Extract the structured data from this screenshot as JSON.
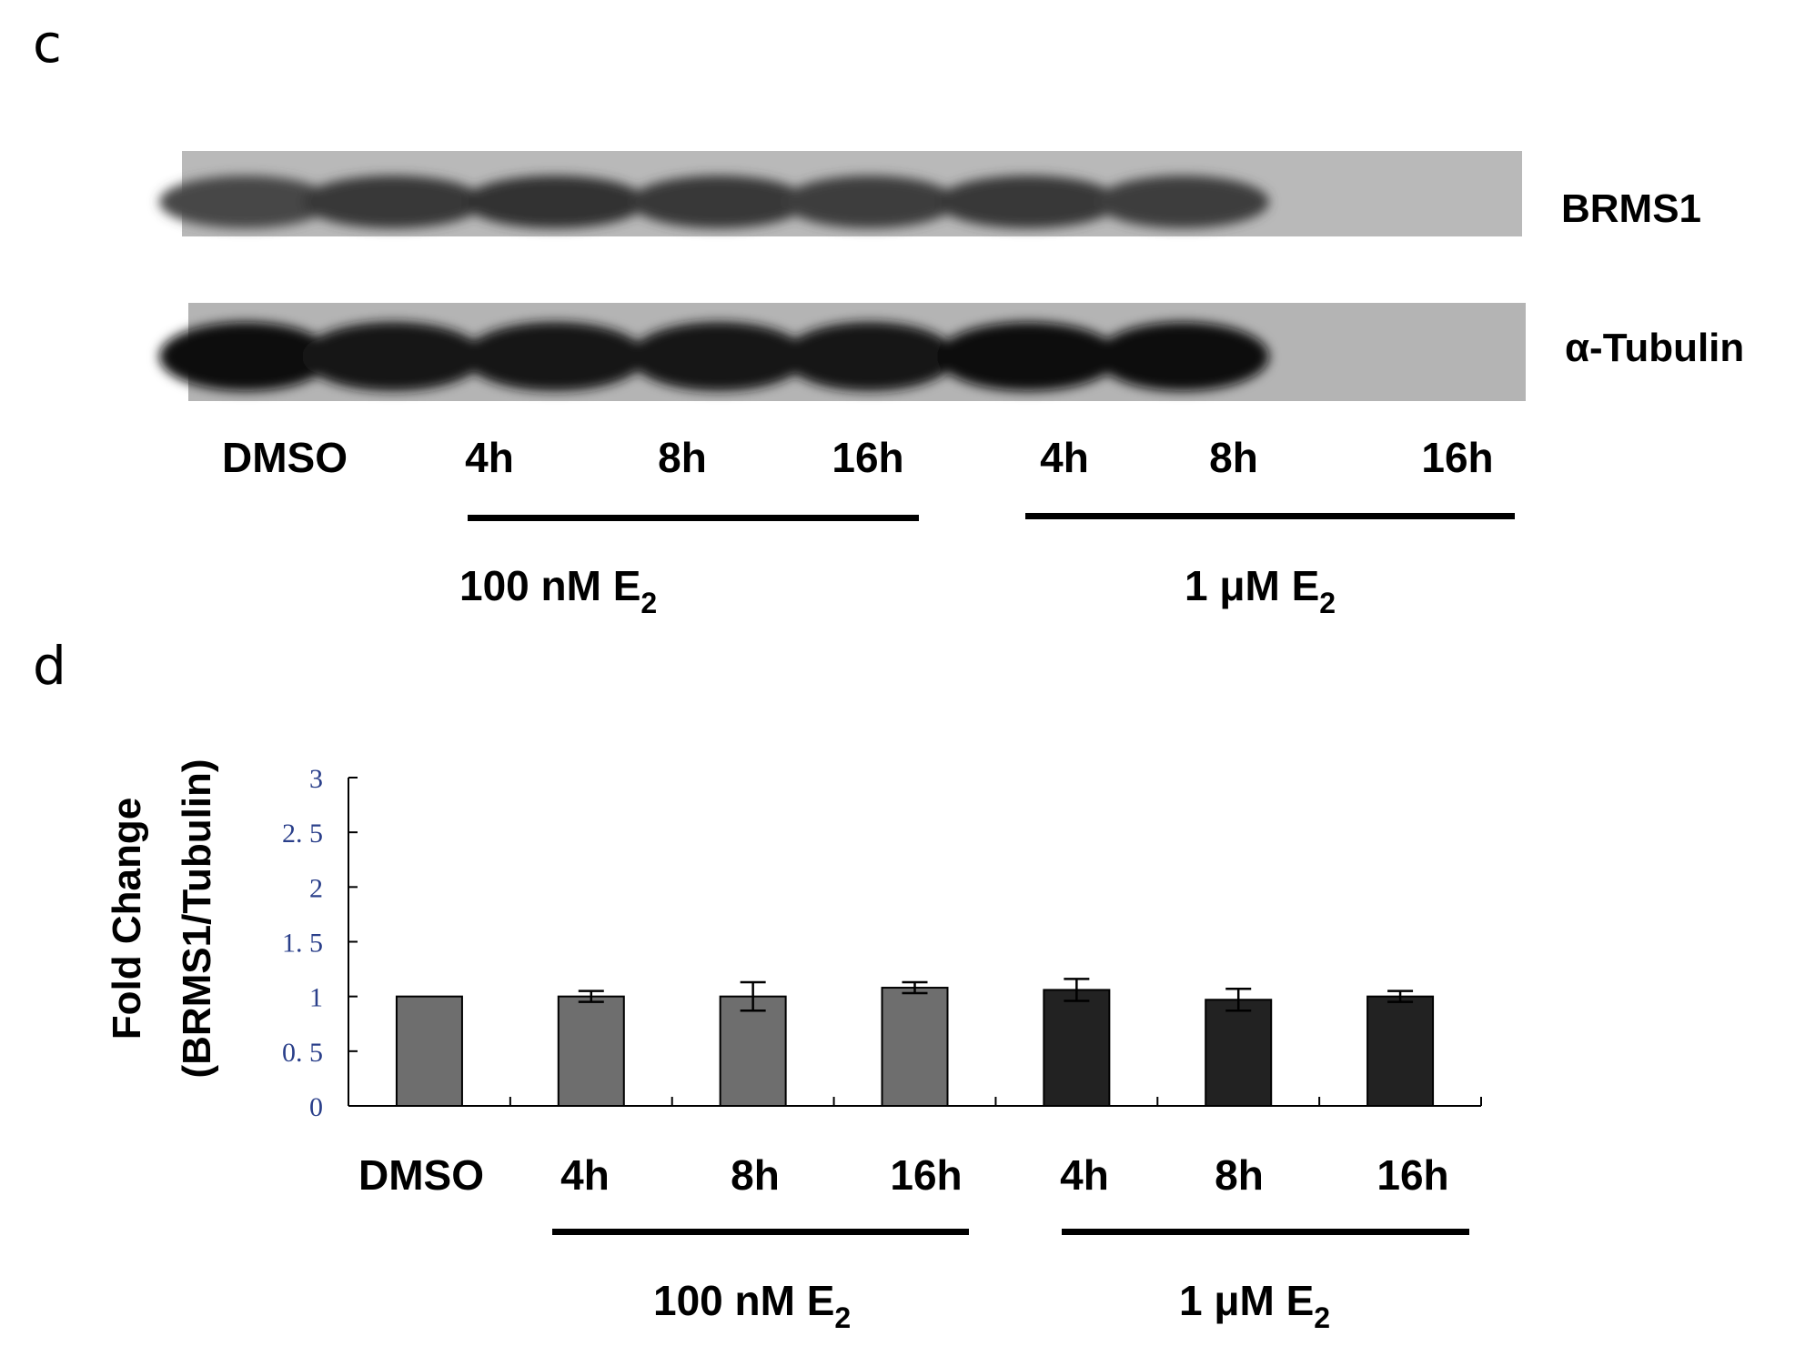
{
  "panels": {
    "c": "c",
    "d": "d"
  },
  "blot": {
    "bands": [
      {
        "name": "BRMS1",
        "intensity": [
          0.72,
          0.78,
          0.8,
          0.78,
          0.76,
          0.78,
          0.76
        ]
      },
      {
        "name": "α-Tubulin",
        "intensity": [
          0.95,
          0.92,
          0.92,
          0.9,
          0.93,
          0.96,
          0.95
        ]
      }
    ],
    "lanes": [
      "DMSO",
      "4h",
      "8h",
      "16h",
      "4h",
      "8h",
      "16h"
    ],
    "groups": [
      {
        "label_main": "100 nM E",
        "label_sub": "2"
      },
      {
        "label_main": "1 μM E",
        "label_sub": "2"
      }
    ]
  },
  "chart_data": {
    "type": "bar",
    "categories": [
      "DMSO",
      "4h",
      "8h",
      "16h",
      "4h",
      "8h",
      "16h"
    ],
    "values": [
      1.0,
      1.0,
      1.0,
      1.08,
      1.06,
      0.97,
      1.0
    ],
    "errors": [
      0,
      0.05,
      0.13,
      0.05,
      0.1,
      0.1,
      0.05
    ],
    "bar_colors": [
      "#6e6e6e",
      "#6e6e6e",
      "#6e6e6e",
      "#6e6e6e",
      "#222222",
      "#222222",
      "#222222"
    ],
    "ylabel_line1": "Fold Change",
    "ylabel_line2": "(BRMS1/Tubulin)",
    "ylim": [
      0,
      3
    ],
    "yticks": [
      "0",
      "0. 5",
      "1",
      "1. 5",
      "2",
      "2. 5",
      "3"
    ],
    "ytick_values": [
      0,
      0.5,
      1,
      1.5,
      2,
      2.5,
      3
    ],
    "groups": [
      {
        "label_main": "100 nM E",
        "label_sub": "2"
      },
      {
        "label_main": "1 μM E",
        "label_sub": "2"
      }
    ],
    "grid": false,
    "legend": "none"
  }
}
